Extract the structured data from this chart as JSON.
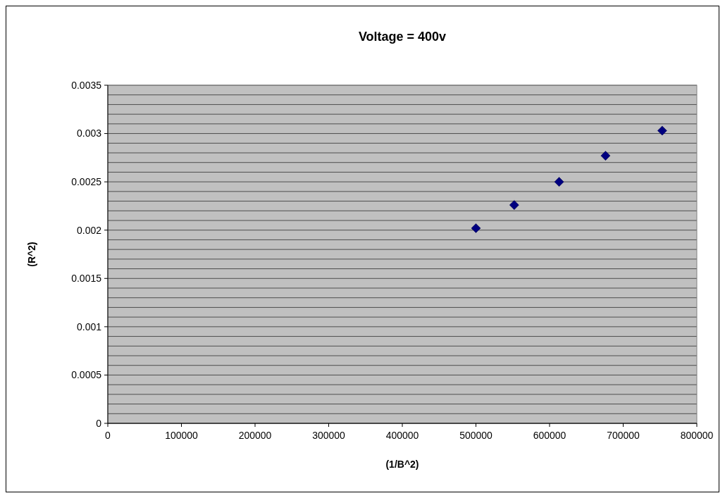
{
  "chart_data": {
    "type": "scatter",
    "title": "Voltage = 400v",
    "xlabel": "(1/B^2)",
    "ylabel": "(R^2)",
    "x": [
      500000,
      552000,
      613000,
      676000,
      753000
    ],
    "series": [
      {
        "color": "#000080",
        "values": [
          0.00202,
          0.00226,
          0.0025,
          0.00277,
          0.00303
        ]
      }
    ],
    "xlim": [
      0,
      800000
    ],
    "xticks": [
      0,
      100000,
      200000,
      300000,
      400000,
      500000,
      600000,
      700000,
      800000
    ],
    "ylim": [
      0,
      0.0035
    ],
    "yticks": [
      0,
      {
        "value": 0.0001,
        "label": null
      },
      {
        "value": 0.0002,
        "label": null
      },
      {
        "value": 0.0003,
        "label": null
      },
      {
        "value": 0.0004,
        "label": null
      },
      0.0005,
      {
        "value": 0.0006,
        "label": null
      },
      {
        "value": 0.0007,
        "label": null
      },
      {
        "value": 0.0008,
        "label": null
      },
      {
        "value": 0.0009,
        "label": null
      },
      0.001,
      {
        "value": 0.0011,
        "label": null
      },
      {
        "value": 0.0012,
        "label": null
      },
      {
        "value": 0.0013,
        "label": null
      },
      {
        "value": 0.0014,
        "label": null
      },
      0.0015,
      {
        "value": 0.0016,
        "label": null
      },
      {
        "value": 0.0017,
        "label": null
      },
      {
        "value": 0.0018,
        "label": null
      },
      {
        "value": 0.0019,
        "label": null
      },
      0.002,
      {
        "value": 0.0021,
        "label": null
      },
      {
        "value": 0.0022,
        "label": null
      },
      {
        "value": 0.0023,
        "label": null
      },
      {
        "value": 0.0024,
        "label": null
      },
      0.0025,
      {
        "value": 0.0026,
        "label": null
      },
      {
        "value": 0.0027,
        "label": null
      },
      {
        "value": 0.0028,
        "label": null
      },
      {
        "value": 0.0029,
        "label": null
      },
      0.003,
      {
        "value": 0.0031,
        "label": null
      },
      {
        "value": 0.0032,
        "label": null
      },
      {
        "value": 0.0033,
        "label": null
      },
      {
        "value": 0.0034,
        "label": null
      },
      0.0035
    ],
    "grid": "y",
    "marker": "diamond"
  }
}
